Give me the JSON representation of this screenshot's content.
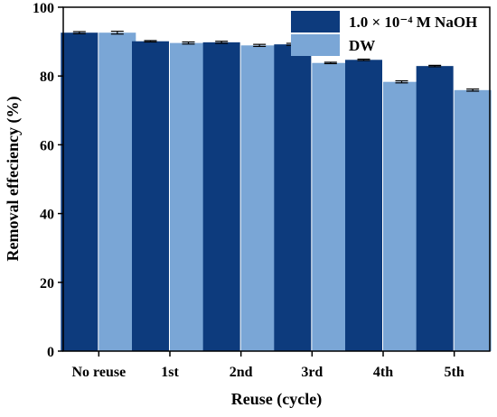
{
  "chart_data": {
    "type": "bar",
    "xlabel": "Reuse (cycle)",
    "ylabel": "Removal effeciency (%)",
    "ylim": [
      0,
      100
    ],
    "yticks": [
      0,
      20,
      40,
      60,
      80,
      100
    ],
    "categories": [
      "No reuse",
      "1st",
      "2nd",
      "3rd",
      "4th",
      "5th"
    ],
    "series": [
      {
        "name": "1.0 × 10⁻⁴ M NaOH",
        "color": "#0d3b7d",
        "values": [
          92.6,
          90.1,
          89.8,
          89.2,
          84.7,
          82.9
        ],
        "errors": [
          0.3,
          0.2,
          0.3,
          0.3,
          0.2,
          0.2
        ]
      },
      {
        "name": "DW",
        "color": "#7aa6d6",
        "values": [
          92.6,
          89.6,
          88.9,
          83.8,
          78.3,
          75.9
        ],
        "errors": [
          0.4,
          0.3,
          0.3,
          0.2,
          0.3,
          0.3
        ]
      }
    ],
    "grid": false,
    "legend_position": "top-right"
  }
}
